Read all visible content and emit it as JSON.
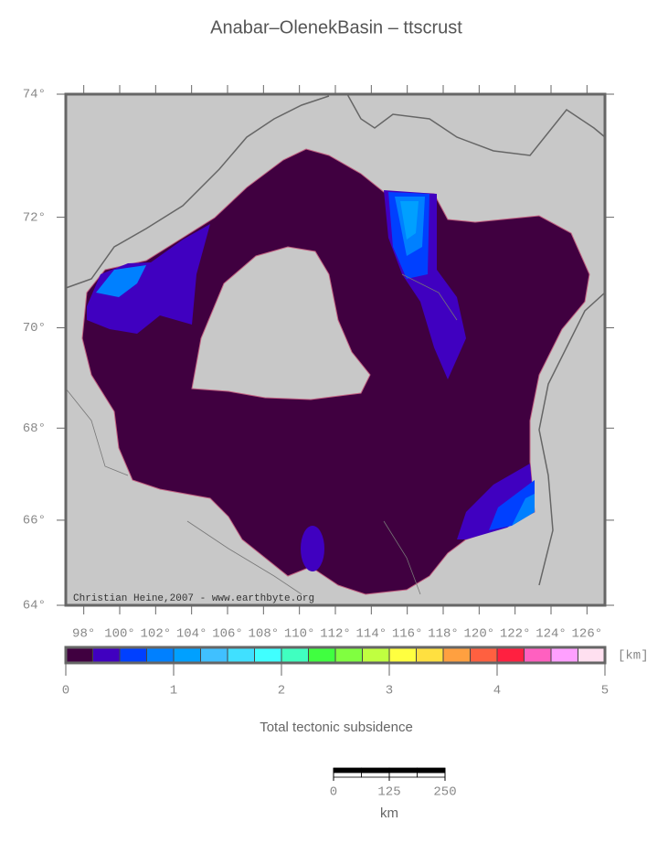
{
  "title": "Anabar–OlenekBasin – ttscrust",
  "credit": "Christian Heine,2007 - www.earthbyte.org",
  "map": {
    "projection": "mercator",
    "lonlim": [
      97,
      127
    ],
    "latlim": [
      64,
      74
    ],
    "lonticks": [
      {
        "value": 98,
        "label": "98°"
      },
      {
        "value": 100,
        "label": "100°"
      },
      {
        "value": 102,
        "label": "102°"
      },
      {
        "value": 104,
        "label": "104°"
      },
      {
        "value": 106,
        "label": "106°"
      },
      {
        "value": 108,
        "label": "108°"
      },
      {
        "value": 110,
        "label": "110°"
      },
      {
        "value": 112,
        "label": "112°"
      },
      {
        "value": 114,
        "label": "114°"
      },
      {
        "value": 116,
        "label": "116°"
      },
      {
        "value": 118,
        "label": "118°"
      },
      {
        "value": 120,
        "label": "120°"
      },
      {
        "value": 122,
        "label": "122°"
      },
      {
        "value": 124,
        "label": "124°"
      },
      {
        "value": 126,
        "label": "126°"
      }
    ],
    "latticks": [
      {
        "value": 74,
        "label": "74°"
      },
      {
        "value": 72,
        "label": "72°"
      },
      {
        "value": 70,
        "label": "70°"
      },
      {
        "value": 68,
        "label": "68°"
      },
      {
        "value": 66,
        "label": "66°"
      },
      {
        "value": 64,
        "label": "64°"
      }
    ]
  },
  "colorbar": {
    "label": "Total tectonic subsidence",
    "unit": "[km]",
    "lim": [
      0,
      5
    ],
    "ticks": [
      0,
      1,
      2,
      3,
      4,
      5
    ],
    "colors": [
      "#400040",
      "#4000c0",
      "#0040ff",
      "#0080ff",
      "#00a0ff",
      "#40c0ff",
      "#40e0ff",
      "#40ffff",
      "#40ffc0",
      "#40ff40",
      "#80ff40",
      "#c0ff40",
      "#ffff40",
      "#ffe040",
      "#ffa040",
      "#ff6040",
      "#ff2040",
      "#ff60c0",
      "#ffa0ff",
      "#ffe0f0"
    ]
  },
  "scalebar": {
    "lim": [
      0,
      250
    ],
    "ticks": [
      0,
      125,
      250
    ],
    "unit": "km"
  }
}
